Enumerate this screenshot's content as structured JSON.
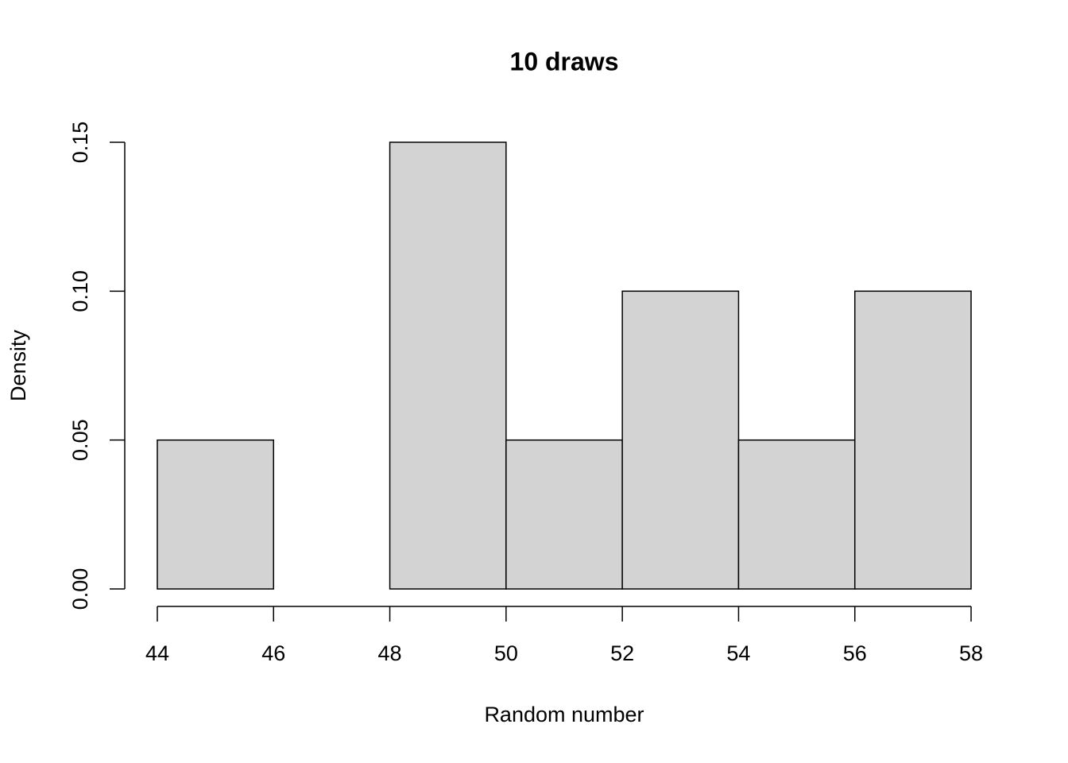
{
  "chart_data": {
    "type": "histogram",
    "title": "10 draws",
    "x_label": "Random number",
    "y_label": "Density",
    "bins": [
      44,
      46,
      48,
      50,
      52,
      54,
      56,
      58
    ],
    "values": [
      0.05,
      0,
      0.15,
      0.05,
      0.1,
      0.05,
      0.1
    ],
    "color": "#d3d3d3",
    "xlim": [
      43.44,
      58.56
    ],
    "ylim": [
      -0.006,
      0.156
    ],
    "xticks": [
      44,
      46,
      48,
      50,
      52,
      54,
      56,
      58
    ],
    "yticks": [
      {
        "value": 0,
        "label": "0.00"
      },
      0.05,
      {
        "value": 0.1,
        "label": "0.10"
      },
      0.15
    ],
    "grid": false
  }
}
